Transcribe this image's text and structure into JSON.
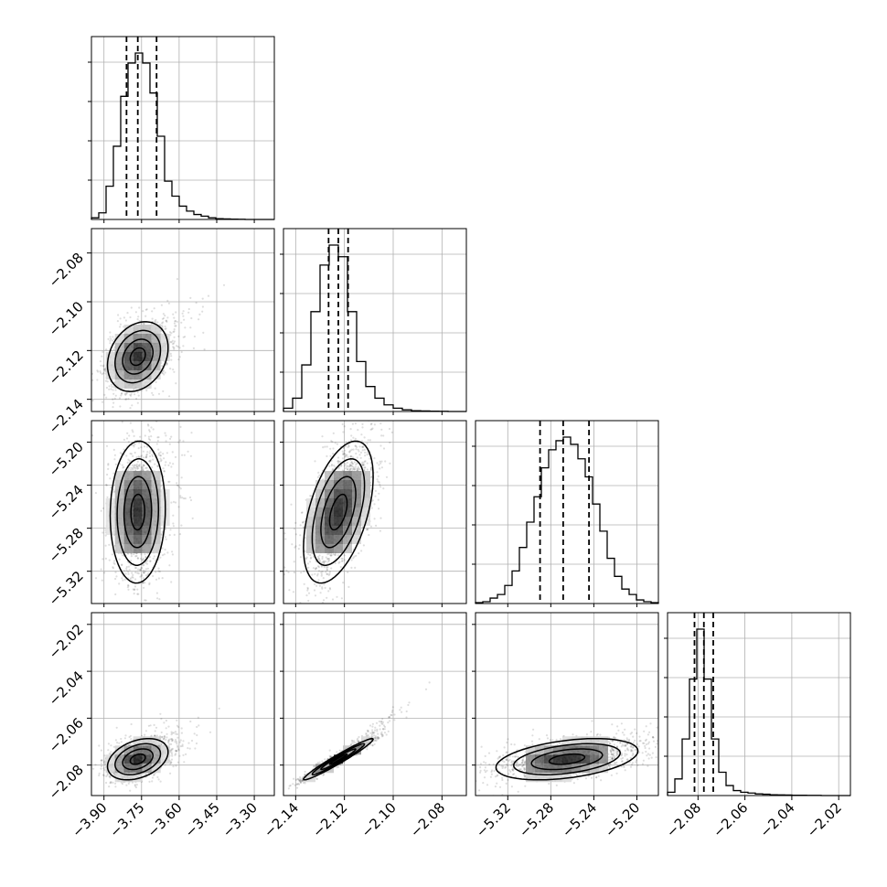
{
  "chart_data": {
    "type": "corner",
    "params": [
      {
        "range": [
          -3.95,
          -3.22
        ],
        "ticks": [
          -3.9,
          -3.75,
          -3.6,
          -3.45,
          -3.3
        ],
        "tick_labels": [
          "−3.90",
          "−3.75",
          "−3.60",
          "−3.45",
          "−3.30"
        ],
        "quantiles": [
          -3.81,
          -3.765,
          -3.69
        ]
      },
      {
        "range": [
          -2.145,
          -2.07
        ],
        "ticks": [
          -2.14,
          -2.12,
          -2.1,
          -2.08
        ],
        "tick_labels": [
          "−2.14",
          "−2.12",
          "−2.10",
          "−2.08"
        ],
        "quantiles": [
          -2.1265,
          -2.1225,
          -2.1185
        ]
      },
      {
        "range": [
          -5.35,
          -5.18
        ],
        "ticks": [
          -5.32,
          -5.28,
          -5.24,
          -5.2
        ],
        "tick_labels": [
          "−5.32",
          "−5.28",
          "−5.24",
          "−5.20"
        ],
        "quantiles": [
          -5.29,
          -5.2685,
          -5.2445
        ]
      },
      {
        "range": [
          -2.093,
          -2.015
        ],
        "ticks": [
          -2.08,
          -2.06,
          -2.04,
          -2.02
        ],
        "tick_labels": [
          "−2.08",
          "−2.06",
          "−2.04",
          "−2.02"
        ],
        "quantiles": [
          -2.0815,
          -2.0775,
          -2.0735
        ]
      }
    ],
    "histograms": [
      {
        "counts": [
          1,
          4,
          20,
          44,
          74,
          94,
          100,
          94,
          76,
          50,
          23,
          14,
          8,
          5,
          3,
          2,
          1,
          0.5,
          0.3,
          0.2,
          0.1,
          0,
          0,
          0,
          0
        ]
      },
      {
        "counts": [
          2,
          8,
          28,
          60,
          88,
          100,
          93,
          60,
          30,
          15,
          8,
          4,
          2,
          1,
          0.5,
          0.3,
          0.2,
          0.1,
          0,
          0
        ]
      },
      {
        "counts": [
          0.5,
          1,
          3,
          5,
          10,
          18,
          31,
          45,
          59,
          75,
          85,
          90,
          92,
          88,
          80,
          70,
          55,
          40,
          25,
          15,
          8,
          5,
          2,
          1,
          0.5
        ]
      },
      {
        "counts": [
          2,
          10,
          34,
          70,
          100,
          70,
          34,
          14,
          6,
          3,
          2,
          1.5,
          1,
          0.8,
          0.5,
          0.4,
          0.3,
          0.2,
          0.2,
          0.1,
          0.1,
          0,
          0,
          0,
          0
        ]
      }
    ],
    "pairs": [
      {
        "x": 0,
        "y": 1,
        "center": [
          -3.765,
          -2.1225
        ],
        "sigma": [
          0.055,
          0.0065
        ],
        "rho": 0.25
      },
      {
        "x": 0,
        "y": 2,
        "center": [
          -3.765,
          -5.265
        ],
        "sigma": [
          0.05,
          0.03
        ],
        "rho": 0.05
      },
      {
        "x": 1,
        "y": 2,
        "center": [
          -2.1225,
          -5.265
        ],
        "sigma": [
          0.0065,
          0.03
        ],
        "rho": 0.5
      },
      {
        "x": 0,
        "y": 3,
        "center": [
          -3.765,
          -2.0775
        ],
        "sigma": [
          0.055,
          0.004
        ],
        "rho": 0.35
      },
      {
        "x": 1,
        "y": 3,
        "center": [
          -2.1225,
          -2.0775
        ],
        "sigma": [
          0.0065,
          0.004
        ],
        "rho": 0.97
      },
      {
        "x": 2,
        "y": 3,
        "center": [
          -5.265,
          -2.0775
        ],
        "sigma": [
          0.03,
          0.004
        ],
        "rho": 0.4
      }
    ],
    "grid": true
  }
}
